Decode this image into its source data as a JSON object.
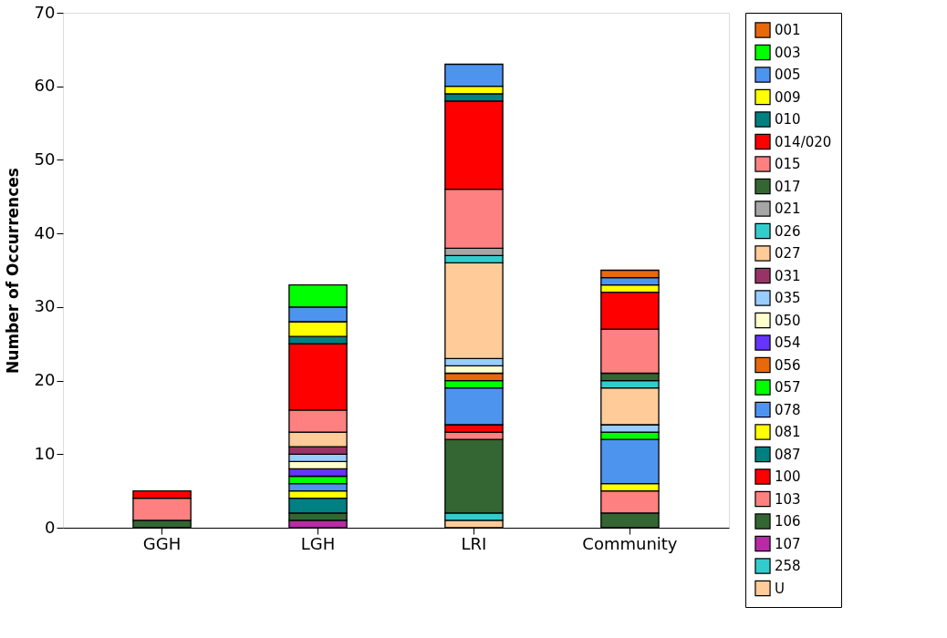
{
  "chart_data": {
    "type": "bar",
    "stacked": true,
    "ylabel": "Number of Occurrences",
    "categories": [
      "GGH",
      "LGH",
      "LRI",
      "Community"
    ],
    "ylim": [
      0,
      70
    ],
    "yticks": [
      0,
      10,
      20,
      30,
      40,
      50,
      60,
      70
    ],
    "grid": false,
    "legend": "right",
    "series": [
      {
        "name": "U",
        "color": "#ffcc99",
        "values": [
          null,
          null,
          1,
          null
        ]
      },
      {
        "name": "258",
        "color": "#33cccc",
        "values": [
          null,
          null,
          1,
          null
        ]
      },
      {
        "name": "107",
        "color": "#b82aa6",
        "values": [
          null,
          1,
          null,
          null
        ]
      },
      {
        "name": "106",
        "color": "#336633",
        "values": [
          1,
          1,
          10,
          2
        ]
      },
      {
        "name": "103",
        "color": "#ff8080",
        "values": [
          null,
          null,
          1,
          3
        ]
      },
      {
        "name": "100",
        "color": "#ff0000",
        "values": [
          null,
          null,
          1,
          null
        ]
      },
      {
        "name": "087",
        "color": "#008080",
        "values": [
          null,
          2,
          null,
          null
        ]
      },
      {
        "name": "081",
        "color": "#ffff00",
        "values": [
          null,
          1,
          null,
          1
        ]
      },
      {
        "name": "078",
        "color": "#4d94ef",
        "values": [
          null,
          1,
          5,
          6
        ]
      },
      {
        "name": "057",
        "color": "#00ff00",
        "values": [
          null,
          1,
          1,
          1
        ]
      },
      {
        "name": "056",
        "color": "#e8680c",
        "values": [
          null,
          null,
          1,
          null
        ]
      },
      {
        "name": "054",
        "color": "#6633ff",
        "values": [
          null,
          1,
          null,
          null
        ]
      },
      {
        "name": "050",
        "color": "#ffffcc",
        "values": [
          null,
          1,
          1,
          null
        ]
      },
      {
        "name": "035",
        "color": "#99ccff",
        "values": [
          null,
          1,
          1,
          1
        ]
      },
      {
        "name": "031",
        "color": "#993366",
        "values": [
          null,
          1,
          null,
          null
        ]
      },
      {
        "name": "027",
        "color": "#ffcc99",
        "values": [
          null,
          2,
          13,
          5
        ]
      },
      {
        "name": "026",
        "color": "#33cccc",
        "values": [
          null,
          null,
          1,
          1
        ]
      },
      {
        "name": "021",
        "color": "#a6a6a6",
        "values": [
          null,
          null,
          1,
          null
        ]
      },
      {
        "name": "017",
        "color": "#336633",
        "values": [
          null,
          null,
          null,
          1
        ]
      },
      {
        "name": "015",
        "color": "#ff8080",
        "values": [
          3,
          3,
          8,
          6
        ]
      },
      {
        "name": "014/020",
        "color": "#ff0000",
        "values": [
          1,
          9,
          12,
          5
        ]
      },
      {
        "name": "010",
        "color": "#008080",
        "values": [
          null,
          1,
          1,
          null
        ]
      },
      {
        "name": "009",
        "color": "#ffff00",
        "values": [
          null,
          2,
          1,
          1
        ]
      },
      {
        "name": "005",
        "color": "#4d94ef",
        "values": [
          null,
          2,
          3,
          1
        ]
      },
      {
        "name": "003",
        "color": "#00ff00",
        "values": [
          null,
          3,
          null,
          null
        ]
      },
      {
        "name": "001",
        "color": "#e8680c",
        "values": [
          null,
          null,
          null,
          1
        ]
      }
    ]
  }
}
